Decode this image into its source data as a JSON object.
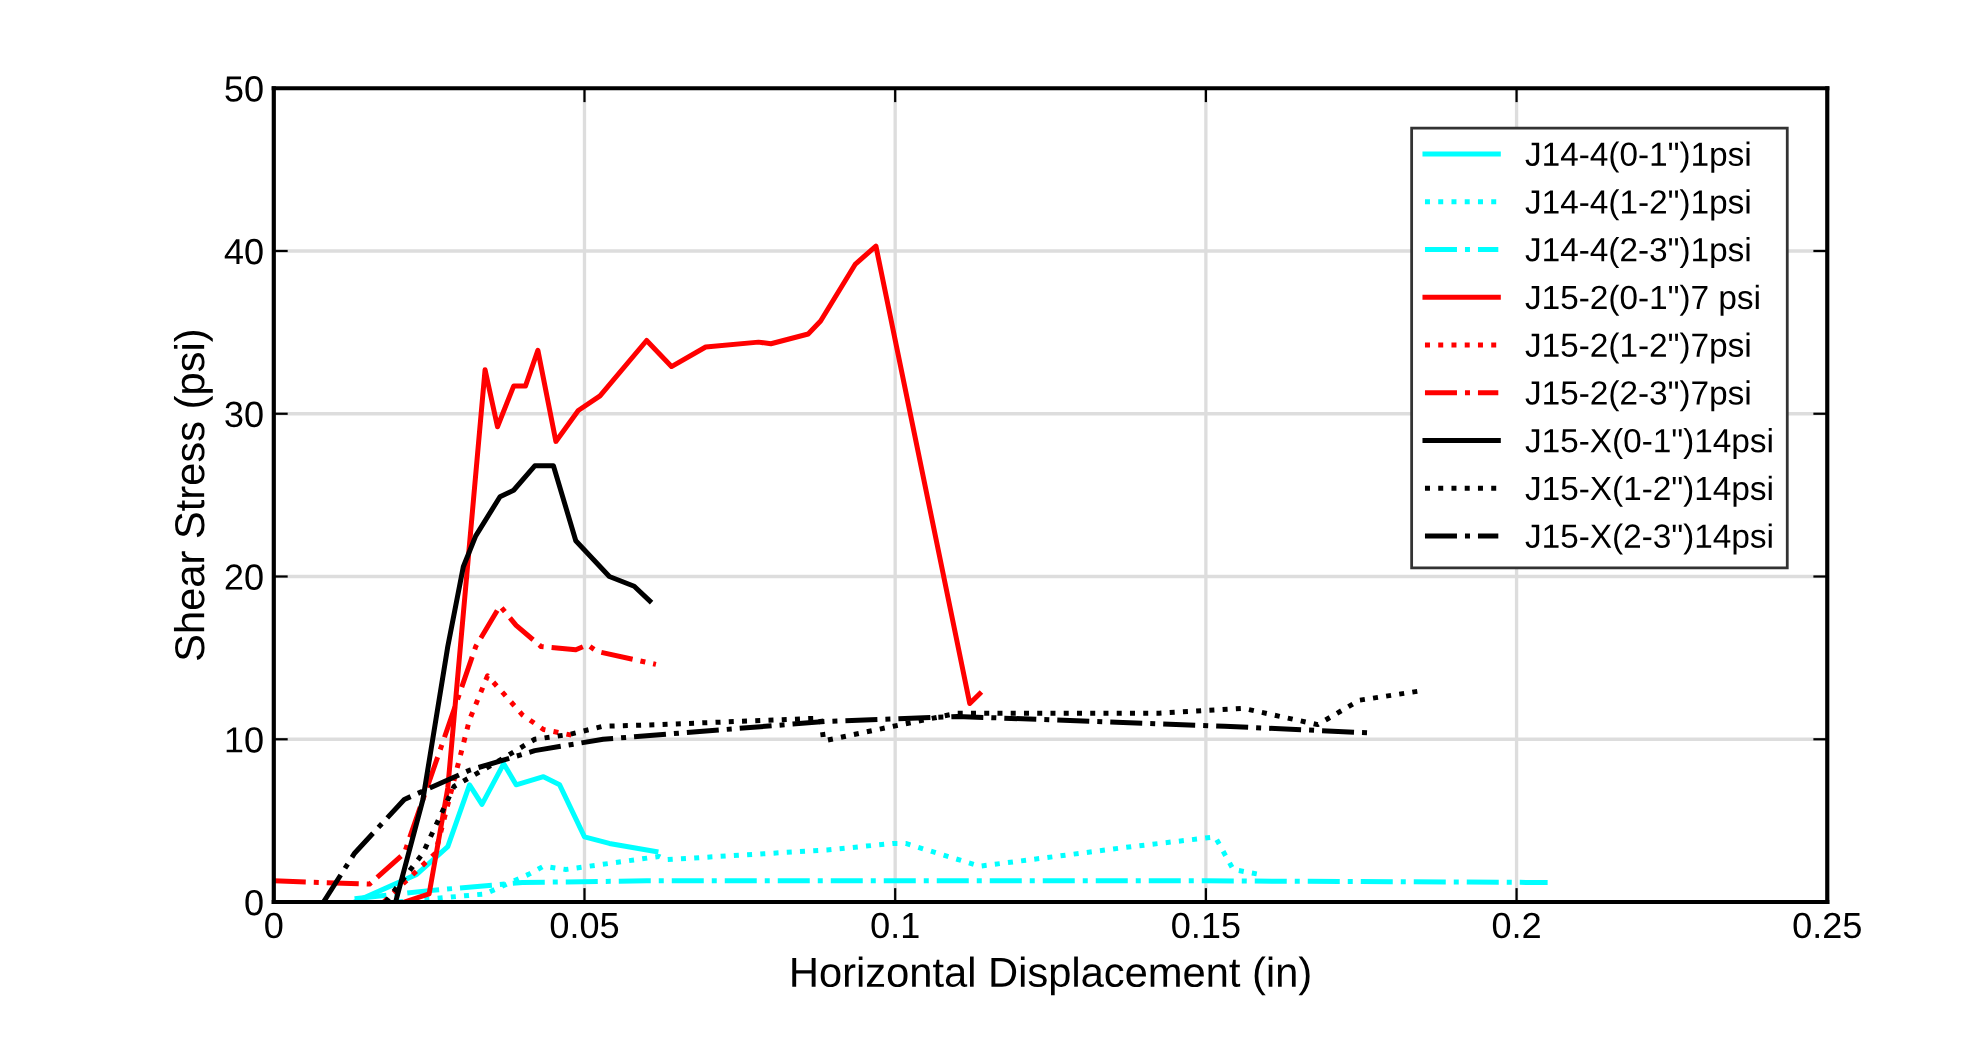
{
  "chart_data": {
    "type": "line",
    "xlabel": "Horizontal Displacement (in)",
    "ylabel": "Shear Stress (psi)",
    "xlim": [
      0,
      0.25
    ],
    "ylim": [
      0,
      50
    ],
    "xticks": [
      0,
      0.05,
      0.1,
      0.15,
      0.2,
      0.25
    ],
    "yticks": [
      0,
      10,
      20,
      30,
      40,
      50
    ],
    "grid": true,
    "legend": "top right",
    "marker": "none",
    "series": [
      {
        "name": "J14-4(0-1\")1psi",
        "color": "#00ffff",
        "line_style": "solid",
        "x": [
          0.013,
          0.023,
          0.028,
          0.0315,
          0.0335,
          0.037,
          0.039,
          0.0434,
          0.046,
          0.05,
          0.054,
          0.0615
        ],
        "values": [
          0,
          1.7,
          3.4,
          7.2,
          6,
          8.5,
          7.2,
          7.7,
          7.2,
          4,
          3.6,
          3.1
        ]
      },
      {
        "name": "J14-4(1-2\")1psi",
        "color": "#00ffff",
        "line_style": "dotted",
        "x": [
          0.02,
          0.034,
          0.041,
          0.0434,
          0.047,
          0.062,
          0.063,
          0.089,
          0.0997,
          0.1017,
          0.1136,
          0.138,
          0.1515,
          0.1544,
          0.1586
        ],
        "values": [
          0,
          0.5,
          1.7,
          2.2,
          2,
          2.8,
          2.6,
          3.2,
          3.6,
          3.6,
          2.2,
          3.4,
          4,
          2,
          1.7
        ]
      },
      {
        "name": "J14-4(2-3\")1psi",
        "color": "#00ffff",
        "line_style": "dashed",
        "x": [
          0.013,
          0.025,
          0.04,
          0.06,
          0.1,
          0.15,
          0.205
        ],
        "values": [
          0.2,
          0.7,
          1.2,
          1.3,
          1.3,
          1.3,
          1.2
        ]
      },
      {
        "name": "J15-2(0-1\")7 psi",
        "color": "#ff0000",
        "line_style": "solid",
        "x": [
          0.021,
          0.025,
          0.028,
          0.0315,
          0.034,
          0.036,
          0.0386,
          0.0405,
          0.0425,
          0.0454,
          0.049,
          0.0525,
          0.06,
          0.064,
          0.0695,
          0.078,
          0.08,
          0.086,
          0.088,
          0.0936,
          0.0969,
          0.112,
          0.1136
        ],
        "values": [
          0,
          0.5,
          7,
          22,
          32.7,
          29.2,
          31.7,
          31.7,
          33.9,
          28.3,
          30.2,
          31.1,
          34.5,
          32.9,
          34.1,
          34.4,
          34.3,
          34.9,
          35.7,
          39.2,
          40.3,
          12.2,
          12.8
        ]
      },
      {
        "name": "J15-2(1-2\")7psi",
        "color": "#ff0000",
        "line_style": "dotted",
        "x": [
          0.0177,
          0.026,
          0.0315,
          0.0344,
          0.037,
          0.04,
          0.0434,
          0.0486
        ],
        "values": [
          0,
          3,
          11.2,
          13.9,
          12.8,
          11.5,
          10.6,
          10.2
        ]
      },
      {
        "name": "J15-2(2-3\")7psi",
        "color": "#ff0000",
        "line_style": "dashed",
        "x": [
          0,
          0.0154,
          0.021,
          0.027,
          0.0325,
          0.0364,
          0.039,
          0.043,
          0.0486,
          0.0505,
          0.052,
          0.0615
        ],
        "values": [
          1.3,
          1.1,
          3,
          9.6,
          15.7,
          18.2,
          17,
          15.7,
          15.5,
          15.8,
          15.4,
          14.6
        ]
      },
      {
        "name": "J15-X(0-1\")14psi",
        "color": "#000000",
        "line_style": "solid",
        "x": [
          0.0196,
          0.024,
          0.028,
          0.0305,
          0.0325,
          0.0364,
          0.0386,
          0.042,
          0.045,
          0.0486,
          0.054,
          0.058,
          0.0605
        ],
        "values": [
          0,
          6.3,
          15.7,
          20.6,
          22.5,
          24.9,
          25.3,
          26.8,
          26.8,
          22.2,
          20,
          19.4,
          18.5
        ]
      },
      {
        "name": "J15-X(1-2\")14psi",
        "color": "#000000",
        "line_style": "dotted",
        "x": [
          0.018,
          0.024,
          0.029,
          0.035,
          0.042,
          0.0476,
          0.053,
          0.062,
          0.088,
          0.0885,
          0.0997,
          0.11,
          0.1425,
          0.156,
          0.168,
          0.1747,
          0.185
        ],
        "values": [
          0,
          3,
          7.1,
          8.4,
          10,
          10.3,
          10.8,
          10.9,
          11.3,
          9.9,
          10.8,
          11.6,
          11.6,
          11.9,
          10.9,
          12.4,
          13
        ]
      },
      {
        "name": "J15-X(2-3\")14psi",
        "color": "#000000",
        "line_style": "dashed",
        "x": [
          0.008,
          0.013,
          0.021,
          0.0315,
          0.042,
          0.053,
          0.089,
          0.11,
          0.132,
          0.153,
          0.176
        ],
        "values": [
          0,
          3,
          6.3,
          8.1,
          9.3,
          10,
          11.1,
          11.4,
          11.1,
          10.8,
          10.4
        ]
      }
    ]
  }
}
